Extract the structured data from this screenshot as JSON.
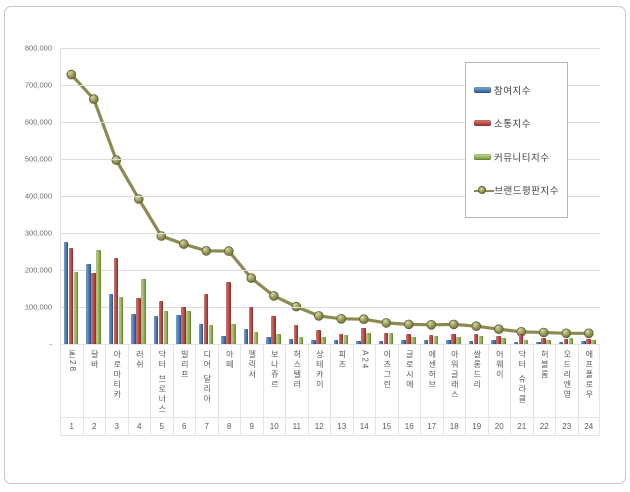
{
  "chart_data": {
    "type": "bar+line",
    "title": "",
    "categories": [
      "톤28",
      "달바",
      "아로마티카",
      "러쉬",
      "닥터 브로너스",
      "빌리프",
      "디어 달리아",
      "아떼",
      "멜릭서",
      "보나쥬르",
      "허스텔러",
      "상테카이",
      "피즈",
      "A24",
      "이즈그린",
      "글로시에",
      "에센허브",
      "아워글래스",
      "쌀롱드리",
      "어웨이",
      "닥터 슈라클",
      "허블롬",
      "오드리엔영",
      "에프폴로우"
    ],
    "ranks": [
      "1",
      "2",
      "3",
      "4",
      "5",
      "6",
      "7",
      "8",
      "9",
      "10",
      "11",
      "12",
      "13",
      "14",
      "15",
      "16",
      "17",
      "18",
      "19",
      "20",
      "21",
      "22",
      "23",
      "24"
    ],
    "series": [
      {
        "name": "참여지수",
        "type": "bar",
        "color": "#4f81bd",
        "values": [
          277000,
          217000,
          134000,
          80000,
          75000,
          78000,
          55000,
          22000,
          40000,
          20000,
          14000,
          12000,
          12000,
          8000,
          7000,
          12000,
          10000,
          12000,
          8000,
          10000,
          6000,
          6000,
          5000,
          7000
        ]
      },
      {
        "name": "소통지수",
        "type": "bar",
        "color": "#c0504d",
        "values": [
          259000,
          191000,
          232000,
          125000,
          115000,
          100000,
          135000,
          168000,
          100000,
          76000,
          52000,
          38000,
          28000,
          44000,
          30000,
          26000,
          24000,
          26000,
          26000,
          22000,
          26000,
          16000,
          13000,
          13000
        ]
      },
      {
        "name": "커뮤니티지수",
        "type": "bar",
        "color": "#9bbb59",
        "values": [
          195000,
          254000,
          128000,
          175000,
          90000,
          88000,
          52000,
          53000,
          33000,
          26000,
          20000,
          18000,
          24000,
          31000,
          30000,
          20000,
          22000,
          20000,
          22000,
          16000,
          12000,
          11000,
          17000,
          11000
        ]
      },
      {
        "name": "브랜드평판지수",
        "type": "line",
        "color": "#8b8b51",
        "values": [
          728000,
          662000,
          497000,
          392000,
          292000,
          270000,
          252000,
          251000,
          178000,
          130000,
          101000,
          76000,
          68000,
          67000,
          57000,
          53000,
          52000,
          53000,
          48000,
          40000,
          33000,
          31000,
          29000,
          29000
        ]
      }
    ],
    "ylim": [
      0,
      800000
    ],
    "yticks": [
      {
        "label": "800,000",
        "value": 800000
      },
      {
        "label": "700,000",
        "value": 700000
      },
      {
        "label": "600,000",
        "value": 600000
      },
      {
        "label": "500,000",
        "value": 500000
      },
      {
        "label": "400,000",
        "value": 400000
      },
      {
        "label": "300,000",
        "value": 300000
      },
      {
        "label": "200,000",
        "value": 200000
      },
      {
        "label": "100,000",
        "value": 100000
      },
      {
        "label": "-",
        "value": 0
      }
    ],
    "grid": true,
    "legend_position": "inside-top-right"
  }
}
